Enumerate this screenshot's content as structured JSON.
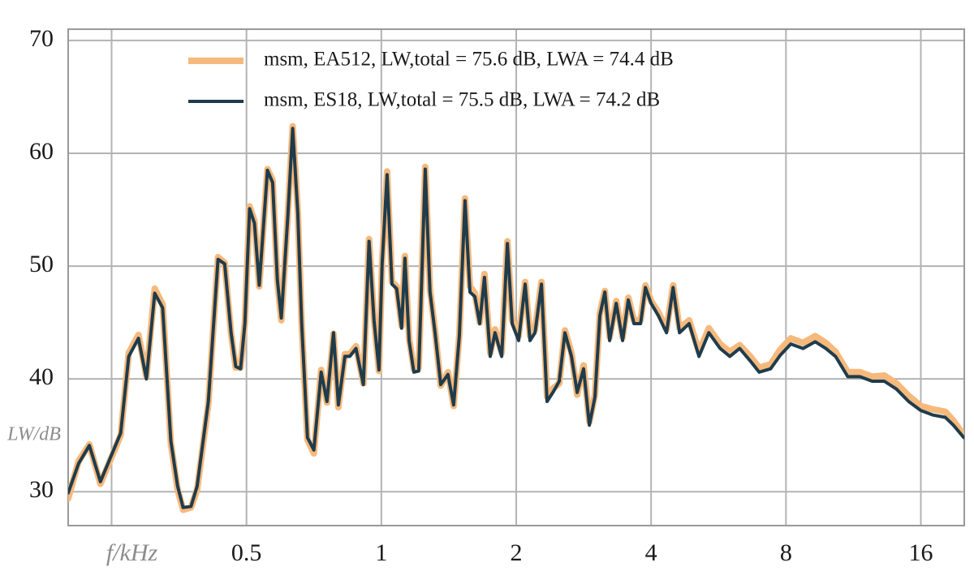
{
  "chart_data": {
    "type": "line",
    "x": [
      0.2,
      0.211,
      0.223,
      0.236,
      0.262,
      0.273,
      0.287,
      0.299,
      0.312,
      0.325,
      0.339,
      0.351,
      0.361,
      0.376,
      0.388,
      0.411,
      0.432,
      0.447,
      0.462,
      0.473,
      0.485,
      0.496,
      0.508,
      0.521,
      0.534,
      0.557,
      0.572,
      0.586,
      0.598,
      0.618,
      0.634,
      0.651,
      0.664,
      0.684,
      0.707,
      0.734,
      0.756,
      0.782,
      0.802,
      0.829,
      0.85,
      0.878,
      0.912,
      0.939,
      0.963,
      0.988,
      1.004,
      1.03,
      1.056,
      1.082,
      1.11,
      1.129,
      1.153,
      1.182,
      1.212,
      1.253,
      1.284,
      1.318,
      1.357,
      1.408,
      1.45,
      1.493,
      1.537,
      1.577,
      1.617,
      1.658,
      1.699,
      1.75,
      1.794,
      1.856,
      1.911,
      1.959,
      2.025,
      2.094,
      2.147,
      2.203,
      2.277,
      2.344,
      2.423,
      2.495,
      2.569,
      2.657,
      2.736,
      2.828,
      2.912,
      2.998,
      3.074,
      3.154,
      3.233,
      3.343,
      3.456,
      3.558,
      3.663,
      3.789,
      3.885,
      4.0,
      4.153,
      4.33,
      4.479,
      4.63,
      4.865,
      5.116,
      5.382,
      5.704,
      5.996,
      6.307,
      6.657,
      6.97,
      7.392,
      7.77,
      8.2,
      8.736,
      9.3,
      9.815,
      10.32,
      10.99,
      11.7,
      12.46,
      13.26,
      14.12,
      15.03,
      16.0,
      17.03,
      18.14,
      18.91,
      19.96
    ],
    "series": [
      {
        "name": "msm, EA512, LW,total = 75.6 dB, LWA = 74.4 dB",
        "color": "#f6b97c",
        "values": [
          29.4,
          32.7,
          34.2,
          30.7,
          35.0,
          42.3,
          43.9,
          40.2,
          48.0,
          46.6,
          34.3,
          30.2,
          28.4,
          28.6,
          30.2,
          37.8,
          50.8,
          50.3,
          44.0,
          41.0,
          41.0,
          45.0,
          55.3,
          54.0,
          48.2,
          58.6,
          57.6,
          48.7,
          45.2,
          54.5,
          62.4,
          54.8,
          44.8,
          34.6,
          33.4,
          40.8,
          37.9,
          44.0,
          37.5,
          42.2,
          42.2,
          42.9,
          39.6,
          52.4,
          45.3,
          40.7,
          50.4,
          58.4,
          48.6,
          48.2,
          44.7,
          50.9,
          43.6,
          40.9,
          41.0,
          58.8,
          47.9,
          44.3,
          39.4,
          40.6,
          37.6,
          43.9,
          56.0,
          48.2,
          47.6,
          45.0,
          49.3,
          42.3,
          44.4,
          42.3,
          52.2,
          45.2,
          43.8,
          48.6,
          43.8,
          44.4,
          48.6,
          38.4,
          39.2,
          39.6,
          44.3,
          42.3,
          38.6,
          41.2,
          36.2,
          38.6,
          45.8,
          47.8,
          43.7,
          46.9,
          43.7,
          47.2,
          45.2,
          45.2,
          48.3,
          46.9,
          45.9,
          44.4,
          48.3,
          44.5,
          45.2,
          42.4,
          44.5,
          43.1,
          42.4,
          43.0,
          42.0,
          41.0,
          41.3,
          42.6,
          43.6,
          43.2,
          43.8,
          43.2,
          42.4,
          40.6,
          40.6,
          40.2,
          40.3,
          39.6,
          38.5,
          37.6,
          37.3,
          37.1,
          36.3,
          35.0
        ]
      },
      {
        "name": "msm, ES18, LW,total = 75.5 dB, LWA = 74.2 dB",
        "color": "#1f3c4c",
        "values": [
          29.9,
          32.5,
          34.1,
          30.9,
          35.2,
          42.0,
          43.6,
          40.0,
          47.6,
          46.3,
          34.5,
          30.5,
          28.6,
          28.7,
          30.5,
          38.0,
          50.6,
          50.2,
          44.1,
          41.1,
          40.9,
          44.9,
          55.1,
          53.8,
          48.3,
          58.5,
          57.4,
          48.8,
          45.4,
          54.3,
          62.2,
          54.7,
          44.9,
          34.8,
          33.7,
          40.6,
          38.0,
          44.1,
          37.7,
          42.0,
          42.0,
          42.7,
          39.5,
          52.2,
          45.2,
          40.8,
          50.2,
          58.1,
          48.4,
          48.0,
          44.5,
          50.7,
          43.4,
          40.6,
          40.7,
          58.6,
          47.7,
          44.1,
          39.5,
          40.4,
          37.7,
          43.8,
          55.8,
          47.7,
          47.3,
          44.9,
          49.0,
          42.0,
          44.1,
          42.0,
          52.0,
          44.9,
          43.4,
          48.4,
          43.4,
          44.1,
          48.4,
          38.0,
          38.9,
          39.8,
          44.1,
          42.0,
          38.8,
          40.9,
          35.9,
          38.4,
          45.6,
          47.7,
          43.4,
          46.7,
          43.4,
          47.0,
          44.9,
          44.9,
          48.1,
          46.7,
          45.6,
          44.1,
          48.1,
          44.1,
          44.9,
          42.0,
          44.1,
          42.7,
          42.0,
          42.7,
          41.6,
          40.6,
          40.9,
          42.1,
          43.1,
          42.7,
          43.3,
          42.7,
          42.0,
          40.2,
          40.2,
          39.8,
          39.8,
          39.1,
          38.0,
          37.2,
          36.8,
          36.6,
          35.9,
          34.8
        ]
      }
    ],
    "y_label": "LW/dB",
    "xscale": "log",
    "xlim": [
      0.2,
      20
    ],
    "ylim": [
      27,
      71
    ],
    "xticks": [
      {
        "value": 0.25,
        "label": "f/kHz"
      },
      0.5,
      1,
      2,
      4,
      8,
      16
    ],
    "yticks": [
      30,
      40,
      50,
      60,
      70
    ],
    "grid": true,
    "legend": "upper right"
  }
}
